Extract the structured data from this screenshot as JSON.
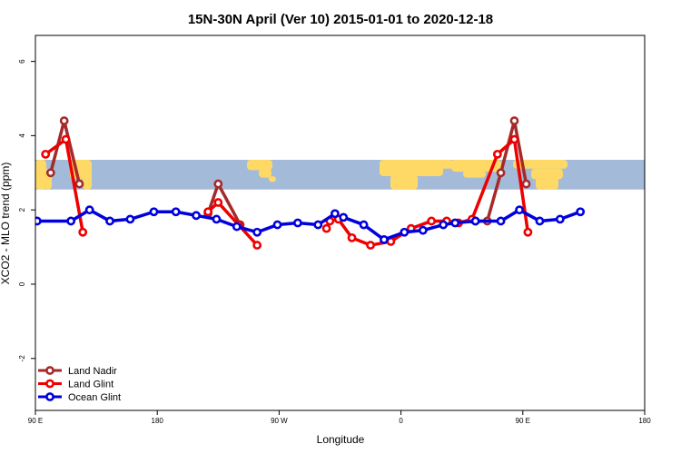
{
  "chart_data": {
    "type": "line",
    "title": "15N-30N April (Ver 10)   2015-01-01 to 2020-12-18",
    "xlabel": "Longitude",
    "ylabel": "XCO2 - MLO trend (ppm)",
    "xlim": [
      -90,
      270
    ],
    "ylim": [
      -3.4,
      6.7
    ],
    "x_ticks": [
      -90,
      -18,
      54,
      126,
      198,
      270
    ],
    "x_tick_labels": [
      "90 E",
      "180",
      "90 W",
      "0",
      "90 E",
      "180"
    ],
    "y_ticks": [
      -2,
      0,
      2,
      4,
      6
    ],
    "y_tick_labels": [
      "-2",
      "0",
      "2",
      "4",
      "6"
    ],
    "map_band": {
      "y_range": [
        2.55,
        3.35
      ],
      "land_color": "#ffd966",
      "ocean_color": "#a4bad9"
    },
    "legend_position": "bottom-left",
    "series": [
      {
        "name": "Land Nadir",
        "color": "#a52a2a",
        "segments": [
          [
            [
              -81,
              3.0
            ],
            [
              -73,
              4.4
            ],
            [
              -64,
              2.7
            ]
          ],
          [
            [
              12,
              1.9
            ],
            [
              18,
              2.7
            ],
            [
              31,
              1.6
            ]
          ],
          [
            [
              170,
              1.7
            ],
            [
              177,
              1.7
            ],
            [
              185,
              3.0
            ],
            [
              193,
              4.4
            ],
            [
              200,
              2.7
            ]
          ]
        ]
      },
      {
        "name": "Land Glint",
        "color": "#ee0000",
        "segments": [
          [
            [
              -84,
              3.5
            ],
            [
              -72,
              3.9
            ],
            [
              -62,
              1.4
            ]
          ],
          [
            [
              12,
              1.95
            ],
            [
              18,
              2.2
            ],
            [
              30,
              1.6
            ],
            [
              41,
              1.05
            ]
          ],
          [
            [
              82,
              1.5
            ],
            [
              84,
              1.7
            ],
            [
              89,
              1.75
            ],
            [
              97,
              1.25
            ],
            [
              108,
              1.05
            ],
            [
              120,
              1.15
            ],
            [
              132,
              1.5
            ],
            [
              144,
              1.7
            ],
            [
              153,
              1.7
            ],
            [
              160,
              1.65
            ],
            [
              168,
              1.75
            ],
            [
              183,
              3.5
            ],
            [
              193,
              3.9
            ],
            [
              201,
              1.4
            ]
          ]
        ]
      },
      {
        "name": "Ocean Glint",
        "color": "#0000dd",
        "segments": [
          [
            [
              -89,
              1.7
            ],
            [
              -69,
              1.7
            ],
            [
              -58,
              2.0
            ],
            [
              -46,
              1.7
            ],
            [
              -34,
              1.75
            ],
            [
              -20,
              1.95
            ],
            [
              -7,
              1.95
            ],
            [
              5,
              1.85
            ],
            [
              17,
              1.75
            ],
            [
              29,
              1.55
            ],
            [
              41,
              1.4
            ],
            [
              53,
              1.6
            ],
            [
              65,
              1.65
            ],
            [
              77,
              1.6
            ],
            [
              87,
              1.9
            ]
          ],
          [
            [
              92,
              1.8
            ],
            [
              104,
              1.6
            ],
            [
              116,
              1.2
            ],
            [
              128,
              1.4
            ],
            [
              139,
              1.45
            ],
            [
              151,
              1.6
            ],
            [
              158,
              1.65
            ],
            [
              170,
              1.7
            ],
            [
              185,
              1.7
            ],
            [
              196,
              2.0
            ],
            [
              208,
              1.7
            ],
            [
              220,
              1.75
            ],
            [
              232,
              1.95
            ]
          ]
        ]
      }
    ]
  }
}
